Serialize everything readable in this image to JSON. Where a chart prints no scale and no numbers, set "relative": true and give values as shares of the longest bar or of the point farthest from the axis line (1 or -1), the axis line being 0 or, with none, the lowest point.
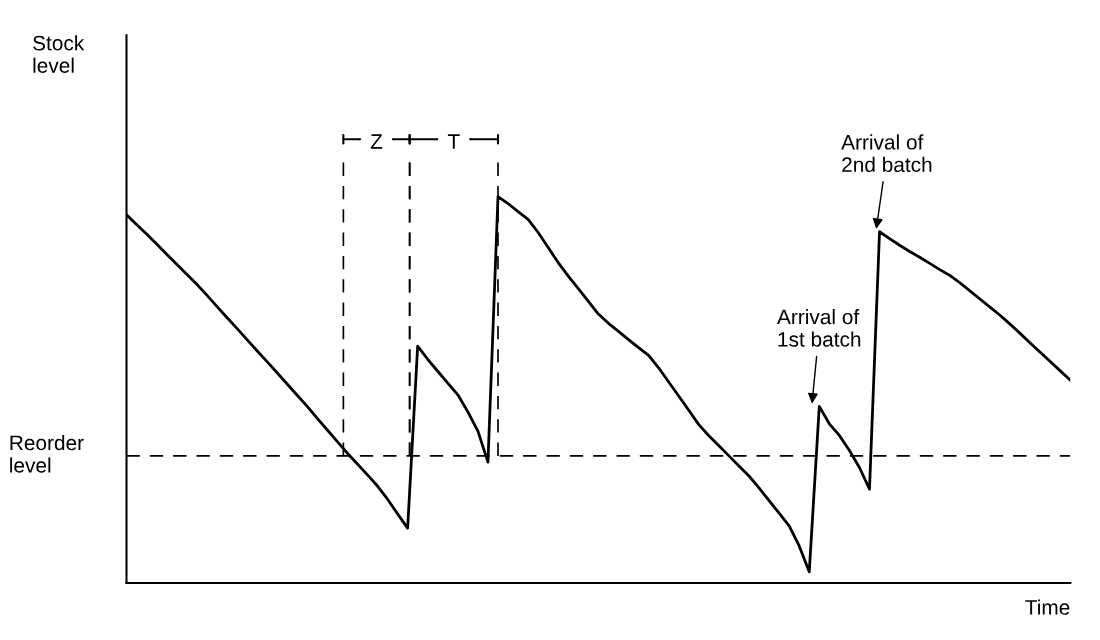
{
  "chart_data": {
    "type": "line",
    "relative": true,
    "xlabel": "Time",
    "categories": [
      null,
      null,
      null,
      null,
      null,
      null,
      null,
      null,
      null,
      null,
      null,
      null,
      null,
      null,
      null,
      null,
      null,
      null,
      null,
      null,
      null,
      null,
      null,
      null,
      null,
      null,
      null,
      null,
      null,
      null,
      null,
      null,
      null,
      null,
      null,
      null,
      null,
      null,
      null,
      null,
      null,
      null,
      null,
      null,
      null,
      null,
      null,
      null,
      null,
      null,
      null,
      null,
      null,
      null,
      null,
      null,
      null,
      null,
      null,
      null,
      null,
      null,
      null,
      null,
      null,
      null,
      null,
      null,
      null,
      null,
      null,
      null,
      null,
      null,
      null,
      null,
      null,
      null,
      null,
      null,
      null,
      null,
      null,
      null,
      null,
      null,
      null,
      null,
      null,
      null,
      null,
      null,
      null,
      null,
      null
    ],
    "series": [
      {
        "color": "#000000",
        "values": [
          0.953,
          0.928,
          0.903,
          0.877,
          0.851,
          0.825,
          0.799,
          0.773,
          0.745,
          0.716,
          0.687,
          0.659,
          0.63,
          0.601,
          0.573,
          0.544,
          0.515,
          0.486,
          0.457,
          0.426,
          0.396,
          0.366,
          0.336,
          0.308,
          0.28,
          0.251,
          0.217,
          0.179,
          0.142,
          0.613,
          0.579,
          0.548,
          0.517,
          0.487,
          0.443,
          0.393,
          0.313,
          1.0,
          0.982,
          0.961,
          0.941,
          0.907,
          0.868,
          0.829,
          0.794,
          0.762,
          0.729,
          0.696,
          0.672,
          0.651,
          0.63,
          0.609,
          0.589,
          0.557,
          0.52,
          0.484,
          0.447,
          0.41,
          0.381,
          0.355,
          0.329,
          0.303,
          0.277,
          0.246,
          0.213,
          0.181,
          0.148,
          0.096,
          0.029,
          0.457,
          0.412,
          0.382,
          0.343,
          0.299,
          0.243,
          0.909,
          0.891,
          0.874,
          0.858,
          0.843,
          0.827,
          0.811,
          0.796,
          0.777,
          0.756,
          0.735,
          0.714,
          0.693,
          0.67,
          0.646,
          0.621,
          0.597,
          0.573,
          0.549,
          0.525
        ]
      }
    ],
    "ref_lines": [
      {
        "axis": "y",
        "value": 0.329,
        "label": "Reorder level",
        "color": "#000000",
        "line_style": "dashed"
      }
    ],
    "annotations": [
      "Stock level",
      "Z",
      "T",
      {
        "text": "Arrival of\n1st batch",
        "y": 0.457
      },
      {
        "text": "Arrival of\n2nd batch",
        "y": 0.909
      }
    ],
    "tick_labels": false,
    "marker": "none",
    "line_style": "solid"
  }
}
